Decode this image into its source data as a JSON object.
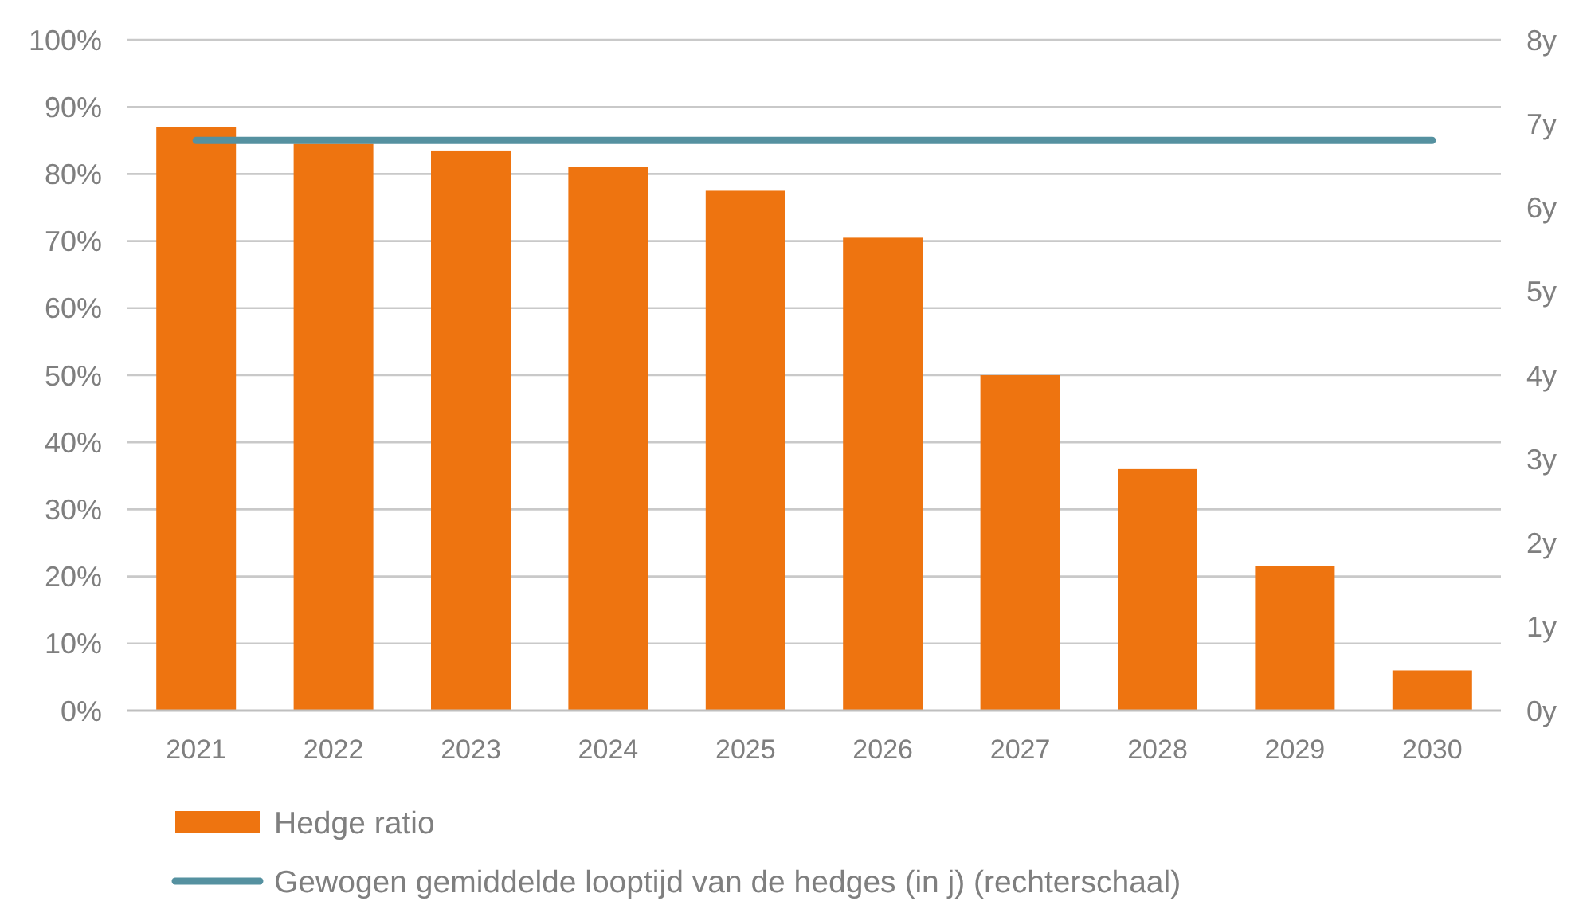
{
  "chart_data": {
    "type": "bar",
    "categories": [
      "2021",
      "2022",
      "2023",
      "2024",
      "2025",
      "2026",
      "2027",
      "2028",
      "2029",
      "2030"
    ],
    "series": [
      {
        "name": "Hedge ratio",
        "color": "#ee7410",
        "values": [
          87,
          84.5,
          83.5,
          81,
          77.5,
          70.5,
          50,
          36,
          21.5,
          6
        ]
      },
      {
        "name": "Gewogen gemiddelde looptijd van de hedges (in j) (rechterschaal)",
        "type": "line",
        "axis": "y2",
        "color": "#5591a0",
        "values": [
          6.8,
          6.8,
          6.8,
          6.8,
          6.8,
          6.8,
          6.8,
          6.8,
          6.8,
          6.8
        ]
      }
    ],
    "ylim": [
      0,
      100
    ],
    "yticks": [
      {
        "value": 0,
        "label": "0%"
      },
      {
        "value": 10,
        "label": "10%"
      },
      {
        "value": 20,
        "label": "20%"
      },
      {
        "value": 30,
        "label": "30%"
      },
      {
        "value": 40,
        "label": "40%"
      },
      {
        "value": 50,
        "label": "50%"
      },
      {
        "value": 60,
        "label": "60%"
      },
      {
        "value": 70,
        "label": "70%"
      },
      {
        "value": 80,
        "label": "80%"
      },
      {
        "value": 90,
        "label": "90%"
      },
      {
        "value": 100,
        "label": "100%"
      }
    ],
    "y2lim": [
      0,
      8
    ],
    "y2ticks": [
      {
        "value": 0,
        "label": "0y"
      },
      {
        "value": 1,
        "label": "1y"
      },
      {
        "value": 2,
        "label": "2y"
      },
      {
        "value": 3,
        "label": "3y"
      },
      {
        "value": 4,
        "label": "4y"
      },
      {
        "value": 5,
        "label": "5y"
      },
      {
        "value": 6,
        "label": "6y"
      },
      {
        "value": 7,
        "label": "7y"
      },
      {
        "value": 8,
        "label": "8y"
      }
    ],
    "grid": "y",
    "legend": "bottom"
  }
}
